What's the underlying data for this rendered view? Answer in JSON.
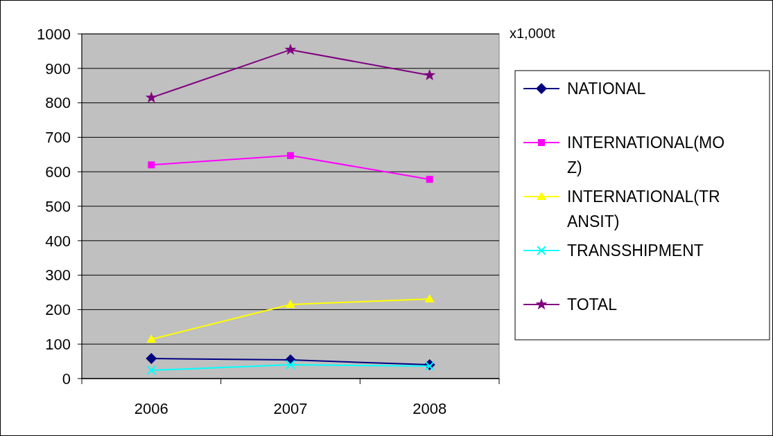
{
  "chart_data": {
    "type": "line",
    "ylabel": "x1,000t",
    "categories": [
      "2006",
      "2007",
      "2008"
    ],
    "ylim": [
      0,
      1000
    ],
    "yticks": [
      0,
      100,
      200,
      300,
      400,
      500,
      600,
      700,
      800,
      900,
      1000
    ],
    "grid": "y",
    "legend": "right",
    "series": [
      {
        "name": "NATIONAL",
        "color": "#000080",
        "marker": "diamond",
        "values": [
          58,
          54,
          40
        ]
      },
      {
        "name": "INTERNATIONAL(MOZ)",
        "color": "#ff00ff",
        "marker": "square",
        "values": [
          620,
          647,
          578
        ]
      },
      {
        "name": "INTERNATIONAL(TRANSIT)",
        "color": "#ffff00",
        "marker": "triangle",
        "values": [
          114,
          215,
          231
        ]
      },
      {
        "name": "TRANSSHIPMENT",
        "color": "#00ffff",
        "marker": "cross",
        "values": [
          24,
          40,
          36
        ]
      },
      {
        "name": "TOTAL",
        "color": "#800080",
        "marker": "star",
        "values": [
          815,
          954,
          880
        ]
      }
    ]
  }
}
